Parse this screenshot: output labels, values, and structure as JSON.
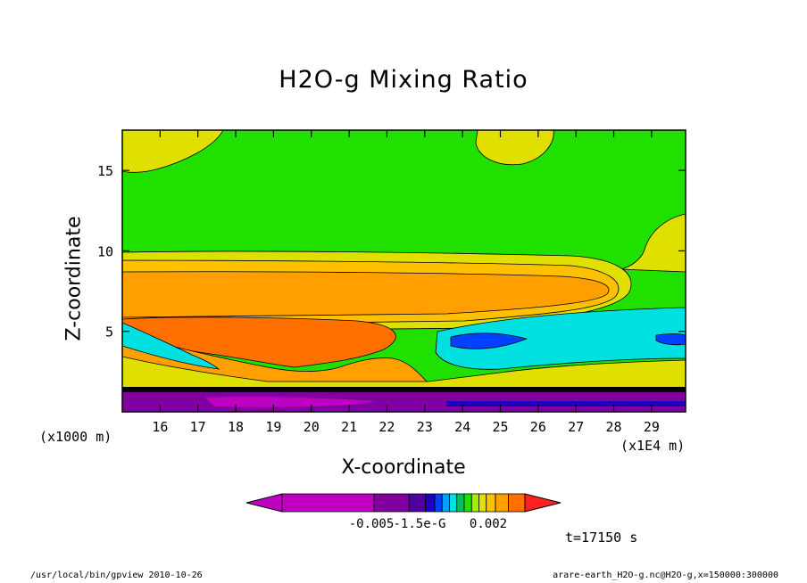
{
  "chart_data": {
    "type": "heatmap",
    "title": "H2O-g Mixing Ratio",
    "xlabel": "X-coordinate",
    "ylabel": "Z-coordinate",
    "x_unit_label": "(x1000 m)",
    "x_scale_label": "(x1E4 m)",
    "x_ticks": [
      16,
      17,
      18,
      19,
      20,
      21,
      22,
      23,
      24,
      25,
      26,
      27,
      28,
      29
    ],
    "y_ticks": [
      5,
      10,
      15
    ],
    "xlim": [
      15.0,
      29.9
    ],
    "ylim": [
      0,
      17.5
    ],
    "colorbar": {
      "colors": [
        "#c000c0",
        "#8000a0",
        "#5000a0",
        "#2000c0",
        "#0040ff",
        "#00a0ff",
        "#00e0e0",
        "#00c060",
        "#20e000",
        "#a0f000",
        "#e0e000",
        "#ffc000",
        "#ffa000",
        "#ff7000"
      ],
      "tick_labels": [
        "-0.005",
        "-1.5e-G",
        "0.002"
      ]
    },
    "time_label": "t=17150 s"
  },
  "footer": {
    "left": "/usr/local/bin/gpview  2010-10-26",
    "right": "arare-earth_H2O-g.nc@H2O-g,x=150000:300000"
  }
}
